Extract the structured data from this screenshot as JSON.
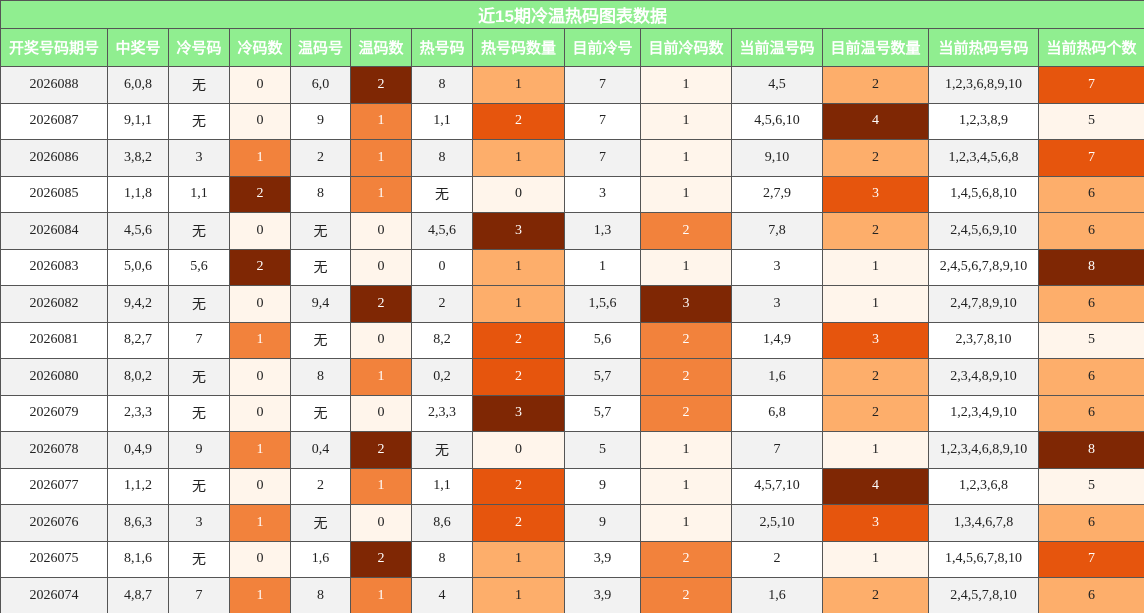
{
  "title": "近15期冷温热码图表数据",
  "header_color": "#90ee90",
  "heat_colors": [
    "#fff5eb",
    "#fdae6b",
    "#e6550d",
    "#7f2704"
  ],
  "columns": [
    "开奖号码期号",
    "中奖号",
    "冷号码",
    "冷码数",
    "温码号",
    "温码数",
    "热号码",
    "热号码数量",
    "目前冷号",
    "目前冷码数",
    "当前温号码",
    "目前温号数量",
    "当前热码号码",
    "当前热码个数"
  ],
  "rows": [
    [
      "2026088",
      "6,0,8",
      "无",
      0,
      "6,0",
      2,
      "8",
      1,
      "7",
      1,
      "4,5",
      2,
      "1,2,3,6,8,9,10",
      7
    ],
    [
      "2026087",
      "9,1,1",
      "无",
      0,
      "9",
      1,
      "1,1",
      2,
      "7",
      1,
      "4,5,6,10",
      4,
      "1,2,3,8,9",
      5
    ],
    [
      "2026086",
      "3,8,2",
      "3",
      1,
      "2",
      1,
      "8",
      1,
      "7",
      1,
      "9,10",
      2,
      "1,2,3,4,5,6,8",
      7
    ],
    [
      "2026085",
      "1,1,8",
      "1,1",
      2,
      "8",
      1,
      "无",
      0,
      "3",
      1,
      "2,7,9",
      3,
      "1,4,5,6,8,10",
      6
    ],
    [
      "2026084",
      "4,5,6",
      "无",
      0,
      "无",
      0,
      "4,5,6",
      3,
      "1,3",
      2,
      "7,8",
      2,
      "2,4,5,6,9,10",
      6
    ],
    [
      "2026083",
      "5,0,6",
      "5,6",
      2,
      "无",
      0,
      "0",
      1,
      "1",
      1,
      "3",
      1,
      "2,4,5,6,7,8,9,10",
      8
    ],
    [
      "2026082",
      "9,4,2",
      "无",
      0,
      "9,4",
      2,
      "2",
      1,
      "1,5,6",
      3,
      "3",
      1,
      "2,4,7,8,9,10",
      6
    ],
    [
      "2026081",
      "8,2,7",
      "7",
      1,
      "无",
      0,
      "8,2",
      2,
      "5,6",
      2,
      "1,4,9",
      3,
      "2,3,7,8,10",
      5
    ],
    [
      "2026080",
      "8,0,2",
      "无",
      0,
      "8",
      1,
      "0,2",
      2,
      "5,7",
      2,
      "1,6",
      2,
      "2,3,4,8,9,10",
      6
    ],
    [
      "2026079",
      "2,3,3",
      "无",
      0,
      "无",
      0,
      "2,3,3",
      3,
      "5,7",
      2,
      "6,8",
      2,
      "1,2,3,4,9,10",
      6
    ],
    [
      "2026078",
      "0,4,9",
      "9",
      1,
      "0,4",
      2,
      "无",
      0,
      "5",
      1,
      "7",
      1,
      "1,2,3,4,6,8,9,10",
      8
    ],
    [
      "2026077",
      "1,1,2",
      "无",
      0,
      "2",
      1,
      "1,1",
      2,
      "9",
      1,
      "4,5,7,10",
      4,
      "1,2,3,6,8",
      5
    ],
    [
      "2026076",
      "8,6,3",
      "3",
      1,
      "无",
      0,
      "8,6",
      2,
      "9",
      1,
      "2,5,10",
      3,
      "1,3,4,6,7,8",
      6
    ],
    [
      "2026075",
      "8,1,6",
      "无",
      0,
      "1,6",
      2,
      "8",
      1,
      "3,9",
      2,
      "2",
      1,
      "1,4,5,6,7,8,10",
      7
    ],
    [
      "2026074",
      "4,8,7",
      "7",
      1,
      "8",
      1,
      "4",
      1,
      "3,9",
      2,
      "1,6",
      2,
      "2,4,5,7,8,10",
      6
    ]
  ]
}
